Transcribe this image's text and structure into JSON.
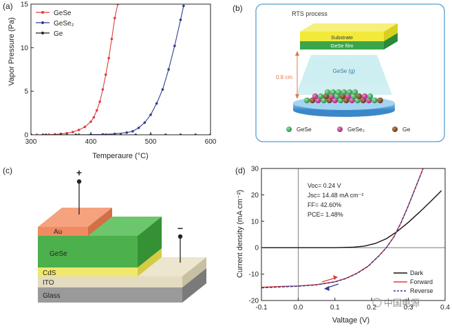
{
  "panels": {
    "a": {
      "label": "(a)"
    },
    "b": {
      "label": "(b)"
    },
    "c": {
      "label": "(c)"
    },
    "d": {
      "label": "(d)"
    }
  },
  "colors": {
    "gese": "#e03c3c",
    "gese2": "#2f3a8f",
    "ge": "#222222",
    "dark": "#111111",
    "forward": "#e03c3c",
    "reverse": "#2f3a8f",
    "film_green": "#3aa64a",
    "substrate_yellow": "#f2ea3a",
    "sphere_green": "#27a04a",
    "sphere_magenta": "#c2268a",
    "sphere_brown": "#7a4a26",
    "au": "#f08a62",
    "cds": "#f0e86e",
    "ito": "#e4dcc0",
    "glass": "#9a9a9a",
    "frame_blue": "#6aaed6"
  },
  "diagram_b": {
    "title": "RTS process",
    "substrate_label": "Substrate",
    "film_label": "GeSe film",
    "vapor_label": "GeSe (g)",
    "distance_label": "0.8 cm",
    "legend": [
      {
        "label": "GeSe",
        "color": "#27a04a"
      },
      {
        "label": "GeSe₂",
        "color": "#c2268a"
      },
      {
        "label": "Ge",
        "color": "#7a4a26"
      }
    ]
  },
  "diagram_c": {
    "plus": "+",
    "minus": "−",
    "layers": {
      "au": "Au",
      "gese": "GeSe",
      "cds": "CdS",
      "ito": "ITO",
      "glass": "Glass"
    }
  },
  "chart_data": [
    {
      "type": "line",
      "panel": "a",
      "xlabel": "Temperaure (°C)",
      "ylabel": "Vapor Pressure (Pa)",
      "xlim": [
        300,
        600
      ],
      "ylim": [
        0,
        15
      ],
      "xticks": [
        300,
        400,
        500,
        600
      ],
      "yticks": [
        0,
        5,
        10,
        15
      ],
      "legend_position": "top-left",
      "series": [
        {
          "name": "GeSe",
          "color": "#e03c3c",
          "x": [
            300,
            310,
            320,
            330,
            340,
            350,
            360,
            370,
            380,
            390,
            400,
            405,
            410,
            415,
            420,
            425,
            430,
            435,
            440,
            445
          ],
          "y": [
            0,
            0,
            0.01,
            0.02,
            0.05,
            0.1,
            0.18,
            0.32,
            0.55,
            0.9,
            1.5,
            2.0,
            2.8,
            3.8,
            5.2,
            6.9,
            8.8,
            11.0,
            13.4,
            15
          ]
        },
        {
          "name": "GeSe₂",
          "color": "#2f3a8f",
          "x": [
            300,
            320,
            340,
            360,
            380,
            400,
            420,
            440,
            460,
            470,
            480,
            490,
            500,
            510,
            520,
            530,
            540,
            550,
            555
          ],
          "y": [
            0,
            0,
            0,
            0,
            0.01,
            0.02,
            0.05,
            0.1,
            0.25,
            0.4,
            0.8,
            1.4,
            2.3,
            3.6,
            5.2,
            7.5,
            10.2,
            13.2,
            14.8
          ]
        },
        {
          "name": "Ge",
          "color": "#222222",
          "x": [
            300,
            325,
            350,
            375,
            400,
            425,
            450,
            475,
            500,
            525,
            550,
            575,
            600
          ],
          "y": [
            0,
            0,
            0,
            0,
            0,
            0,
            0,
            0,
            0,
            0,
            0,
            0,
            0
          ]
        }
      ]
    },
    {
      "type": "line",
      "panel": "d",
      "xlabel": "Valtage (V)",
      "ylabel": "Current density (mA cm⁻²)",
      "xlim": [
        -0.1,
        0.4
      ],
      "ylim": [
        -20,
        30
      ],
      "xticks": [
        -0.1,
        0.0,
        0.1,
        0.2,
        0.3,
        0.4
      ],
      "xtick_labels": [
        "-0.1",
        "0.0",
        "0.1",
        "0.2",
        "0.3",
        "0.4"
      ],
      "yticks": [
        -20,
        -10,
        0,
        10,
        20,
        30
      ],
      "legend_position": "bottom-right",
      "annotations": [
        "Voc= 0.24 V",
        "Jsc= 14.48 mA cm⁻²",
        "FF= 42.60%",
        "PCE= 1.48%"
      ],
      "series": [
        {
          "name": "Dark",
          "color": "#111111",
          "dash": "solid",
          "x": [
            -0.1,
            0.0,
            0.05,
            0.1,
            0.15,
            0.18,
            0.21,
            0.24,
            0.27,
            0.3,
            0.33,
            0.36,
            0.39
          ],
          "y": [
            0,
            0,
            0,
            0,
            0.2,
            0.6,
            1.6,
            3.4,
            6.2,
            9.6,
            13.4,
            17.4,
            21.6
          ]
        },
        {
          "name": "Forward",
          "color": "#e03c3c",
          "dash": "solid",
          "x": [
            -0.1,
            -0.05,
            0.0,
            0.05,
            0.1,
            0.13,
            0.16,
            0.19,
            0.22,
            0.24,
            0.26,
            0.28,
            0.3,
            0.32,
            0.34
          ],
          "y": [
            -15.0,
            -14.7,
            -14.48,
            -14.0,
            -12.9,
            -11.6,
            -9.7,
            -7.0,
            -3.0,
            0.0,
            4.0,
            9.5,
            16.0,
            23.0,
            30.0
          ]
        },
        {
          "name": "Reverse",
          "color": "#2f3a8f",
          "dash": "dashed",
          "x": [
            -0.1,
            -0.05,
            0.0,
            0.05,
            0.1,
            0.13,
            0.16,
            0.19,
            0.22,
            0.24,
            0.26,
            0.28,
            0.3,
            0.32,
            0.34
          ],
          "y": [
            -15.2,
            -14.9,
            -14.6,
            -14.1,
            -13.0,
            -11.7,
            -9.8,
            -7.1,
            -3.1,
            0.0,
            3.9,
            9.4,
            15.9,
            22.9,
            30.0
          ]
        }
      ]
    }
  ],
  "watermark": "中国电源"
}
